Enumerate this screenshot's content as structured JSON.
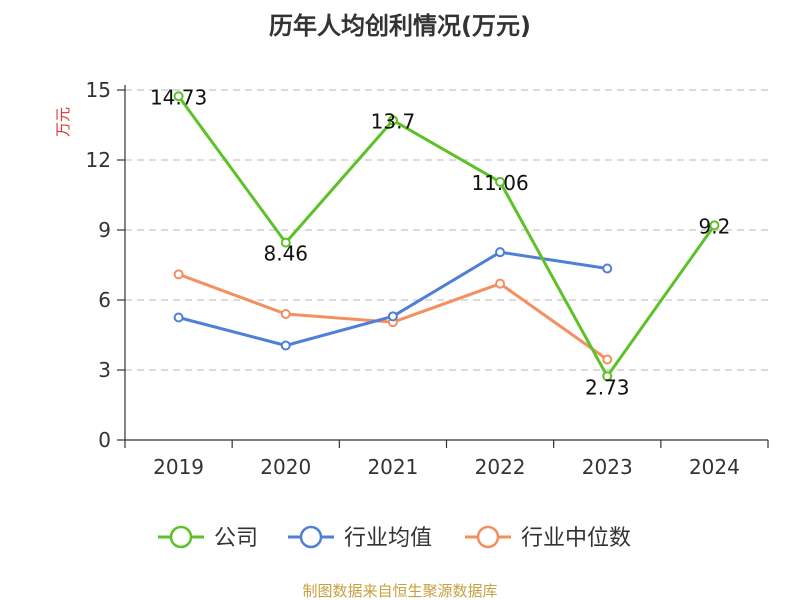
{
  "source": "制图数据来自恒生聚源数据库",
  "chart_data": {
    "type": "line",
    "title": "历年人均创利情况(万元)",
    "ylabel": "万元",
    "xlabel": "",
    "categories": [
      "2019",
      "2020",
      "2021",
      "2022",
      "2023",
      "2024"
    ],
    "ylim": [
      0,
      15
    ],
    "yticks": [
      0,
      3,
      6,
      9,
      12,
      15
    ],
    "grid": true,
    "legend_position": "bottom",
    "series": [
      {
        "name": "公司",
        "color": "#5cc227",
        "values": [
          14.73,
          8.46,
          13.7,
          11.06,
          2.73,
          9.2
        ],
        "labels": [
          "14.73",
          "8.46",
          "13.7",
          "11.06",
          "2.73",
          "9.2"
        ]
      },
      {
        "name": "行业均值",
        "color": "#4f7fd8",
        "values": [
          5.25,
          4.05,
          5.3,
          8.05,
          7.35,
          null
        ]
      },
      {
        "name": "行业中位数",
        "color": "#f49060",
        "values": [
          7.1,
          5.4,
          5.05,
          6.7,
          3.45,
          null
        ]
      }
    ]
  }
}
